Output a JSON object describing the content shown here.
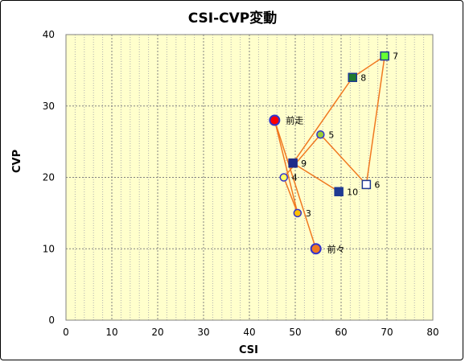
{
  "chart_data": {
    "type": "scatter",
    "title": "CSI-CVP変動",
    "xlabel": "CSI",
    "ylabel": "CVP",
    "xlim": [
      0,
      80
    ],
    "ylim": [
      0,
      40
    ],
    "xticks": [
      0,
      10,
      20,
      30,
      40,
      50,
      60,
      70,
      80
    ],
    "yticks": [
      0,
      10,
      20,
      30,
      40
    ],
    "grid": true,
    "background": "#ffffcc",
    "line_color": "#f07820",
    "points": [
      {
        "label": "前々",
        "x": 54.5,
        "y": 10,
        "shape": "circle",
        "fill": "#f07820",
        "stroke": "#3333cc"
      },
      {
        "label": "前走",
        "x": 45.5,
        "y": 28,
        "shape": "circle",
        "fill": "#ff0000",
        "stroke": "#3333cc"
      },
      {
        "label": "3",
        "x": 50.5,
        "y": 15,
        "shape": "circle",
        "fill": "#ffc000",
        "stroke": "#3333cc"
      },
      {
        "label": "4",
        "x": 47.5,
        "y": 20,
        "shape": "circle",
        "fill": "#ffff66",
        "stroke": "#3333cc"
      },
      {
        "label": "5",
        "x": 55.5,
        "y": 26,
        "shape": "circle",
        "fill": "#99cc33",
        "stroke": "#3333cc"
      },
      {
        "label": "6",
        "x": 65.5,
        "y": 19,
        "shape": "square",
        "fill": "#ffffff",
        "stroke": "#1f3a93"
      },
      {
        "label": "7",
        "x": 69.5,
        "y": 37,
        "shape": "square",
        "fill": "#66ff33",
        "stroke": "#1f3a93"
      },
      {
        "label": "8",
        "x": 62.5,
        "y": 34,
        "shape": "square",
        "fill": "#1f7a2e",
        "stroke": "#1f3a93"
      },
      {
        "label": "9",
        "x": 49.5,
        "y": 22,
        "shape": "square",
        "fill": "#1f2a8a",
        "stroke": "#1f2a8a"
      },
      {
        "label": "10",
        "x": 59.5,
        "y": 18,
        "shape": "square",
        "fill": "#1f3a93",
        "stroke": "#1f3a93"
      }
    ],
    "path_order": [
      "前々",
      "前走",
      "3",
      "4",
      "5",
      "6",
      "7",
      "8",
      "9",
      "10"
    ]
  }
}
